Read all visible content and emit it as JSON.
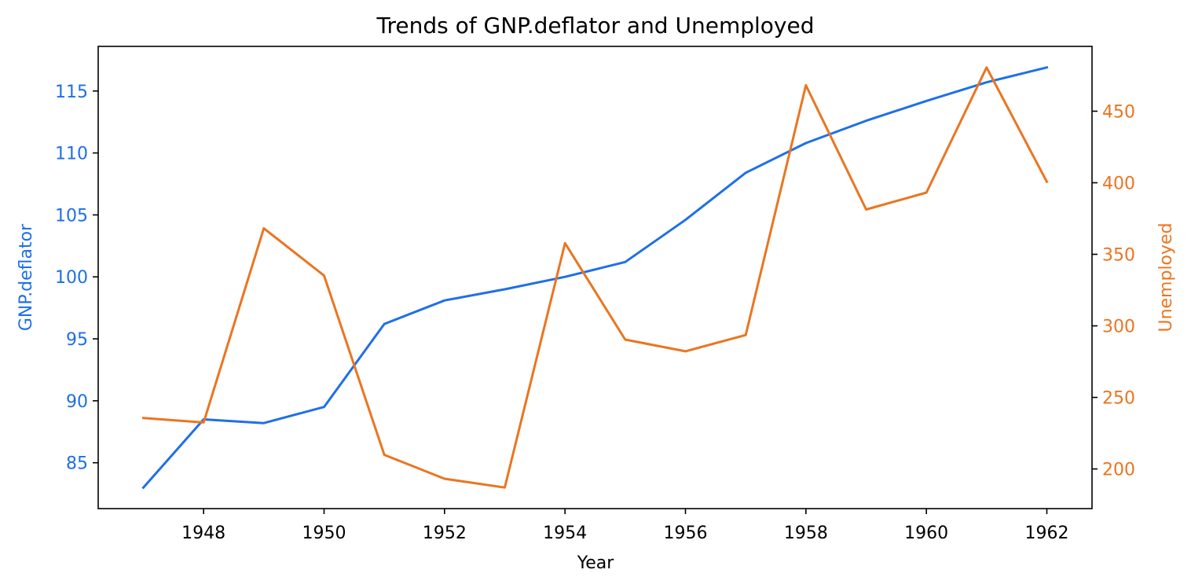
{
  "chart_data": {
    "type": "line",
    "title": "Trends of GNP.deflator and Unemployed",
    "xlabel": "Year",
    "x": [
      1947,
      1948,
      1949,
      1950,
      1951,
      1952,
      1953,
      1954,
      1955,
      1956,
      1957,
      1958,
      1959,
      1960,
      1961,
      1962
    ],
    "xticks": [
      1948,
      1950,
      1952,
      1954,
      1956,
      1958,
      1960,
      1962
    ],
    "xlim": [
      1946.25,
      1962.75
    ],
    "series": [
      {
        "name": "GNP.deflator",
        "axis": "left",
        "color": "#1f6fe8",
        "values": [
          83.0,
          88.5,
          88.2,
          89.5,
          96.2,
          98.1,
          99.0,
          100.0,
          101.2,
          104.6,
          108.4,
          110.8,
          112.6,
          114.2,
          115.7,
          116.9
        ]
      },
      {
        "name": "Unemployed",
        "axis": "right",
        "color": "#ea7521",
        "values": [
          235.6,
          232.5,
          368.2,
          335.1,
          209.9,
          193.2,
          187.0,
          357.8,
          290.4,
          282.2,
          293.6,
          468.1,
          381.3,
          393.1,
          480.6,
          400.7
        ]
      }
    ],
    "y_left": {
      "label": "GNP.deflator",
      "color": "#1f6fe8",
      "ticks": [
        85,
        90,
        95,
        100,
        105,
        110,
        115
      ],
      "ylim": [
        81.3,
        118.6
      ]
    },
    "y_right": {
      "label": "Unemployed",
      "color": "#ea7521",
      "ticks": [
        200,
        250,
        300,
        350,
        400,
        450
      ],
      "ylim": [
        172.3,
        495.3
      ]
    },
    "grid": false,
    "legend": "none"
  }
}
